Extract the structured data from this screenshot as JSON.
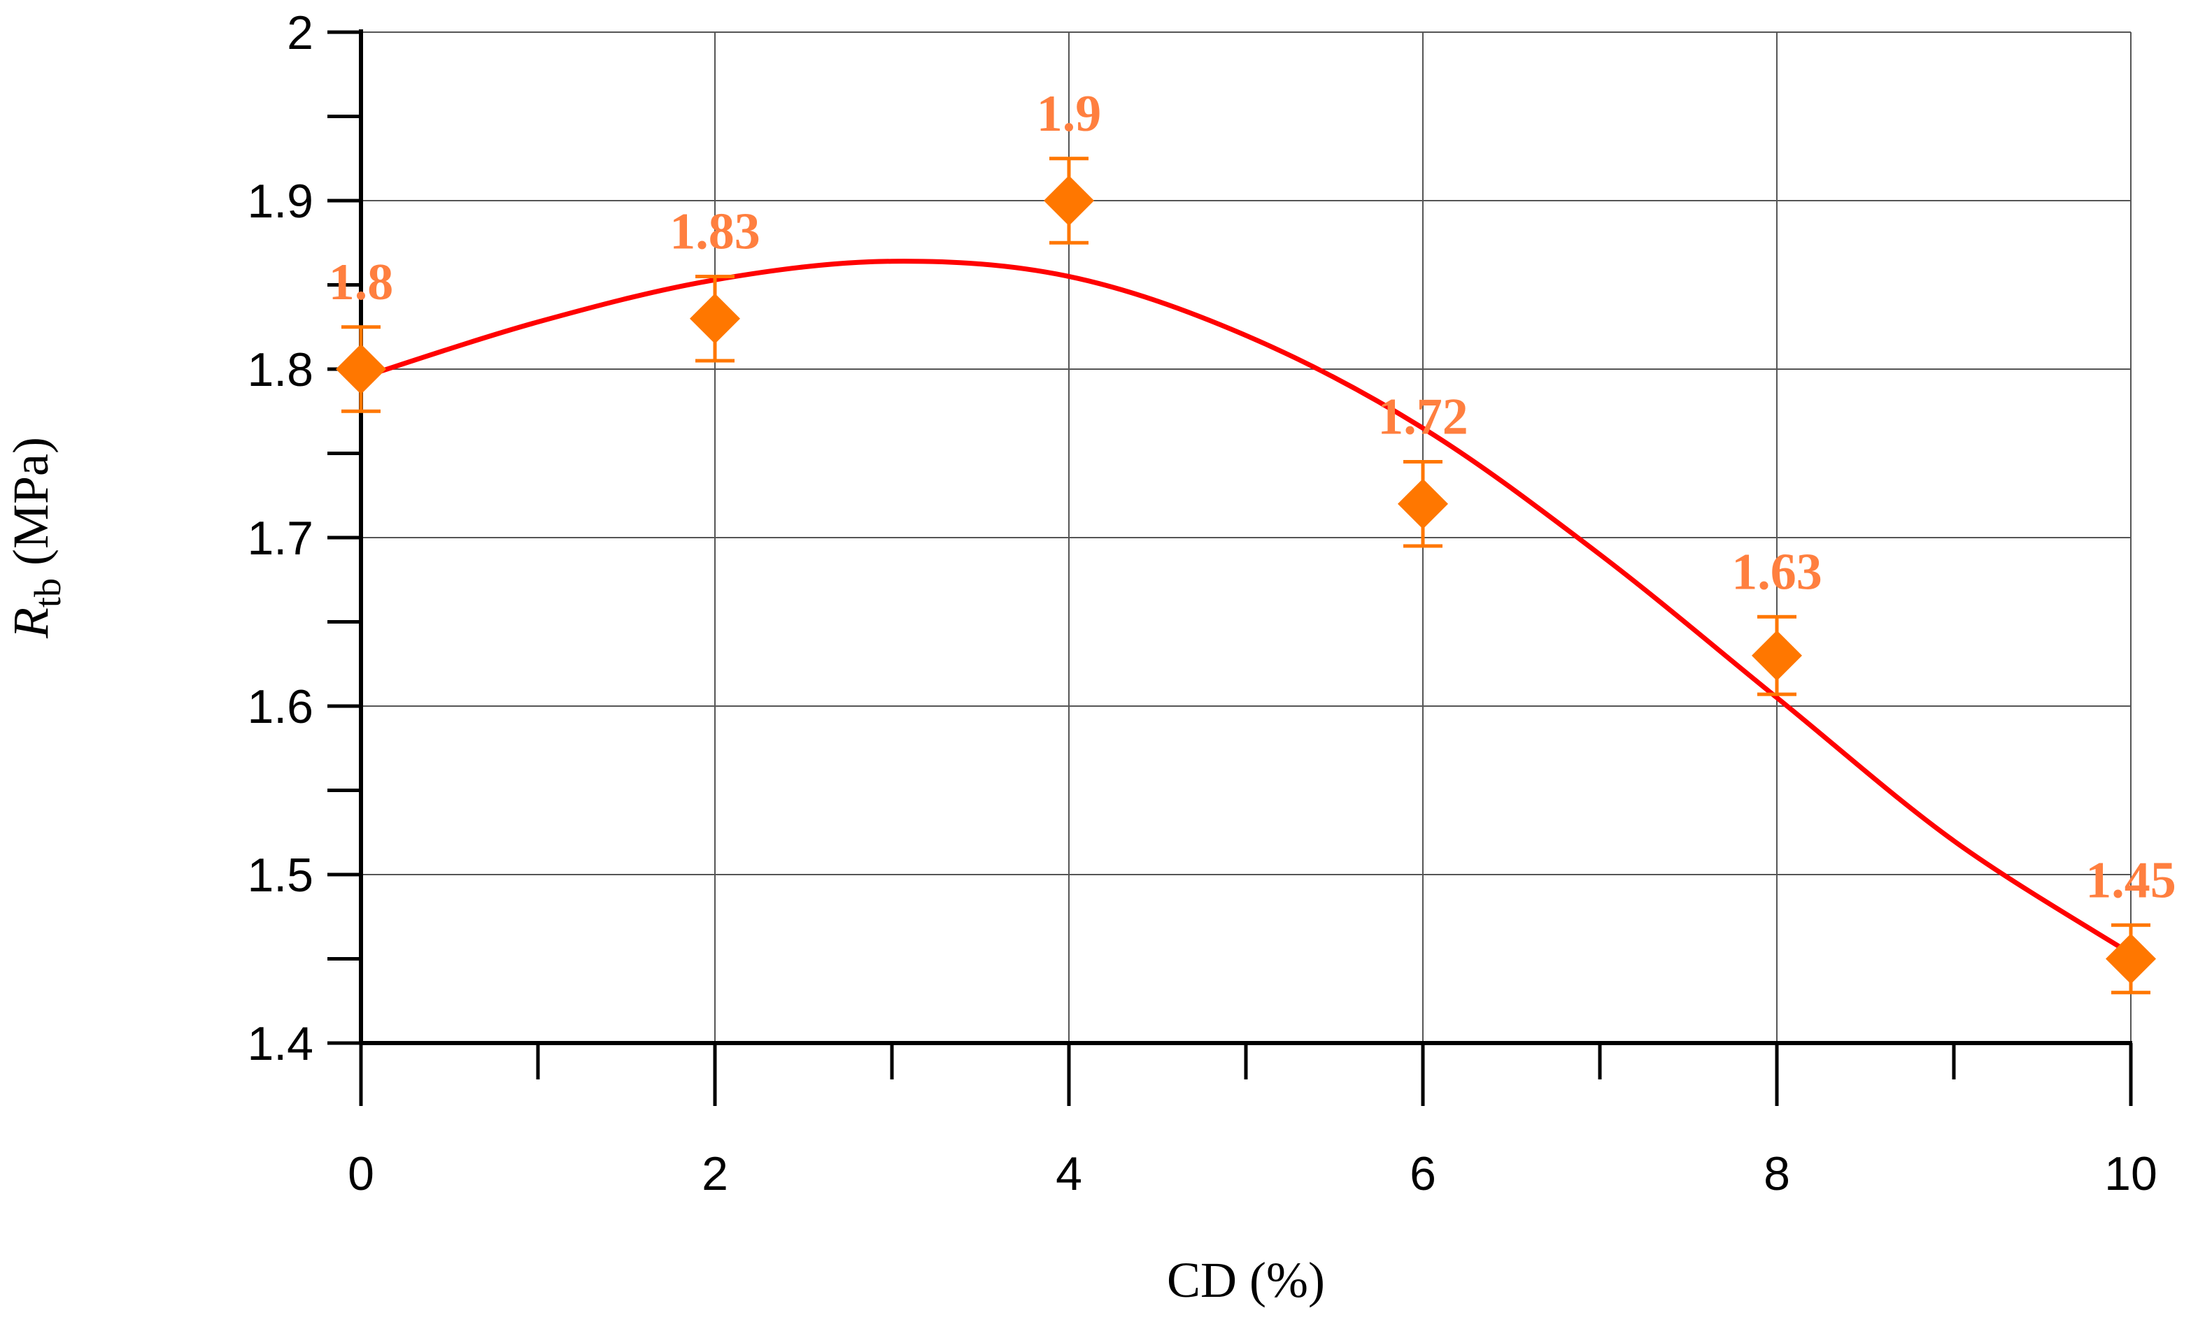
{
  "chart_data": {
    "type": "scatter",
    "title": "",
    "xlabel": "CD (%)",
    "ylabel": {
      "symbol": "R",
      "subscript": "tb",
      "unit": " (MPa)"
    },
    "xlim": [
      0,
      10
    ],
    "ylim": [
      1.4,
      2.0
    ],
    "x_ticks": [
      "0",
      "2",
      "4",
      "6",
      "8",
      "10"
    ],
    "y_ticks": [
      "1.4",
      "1.5",
      "1.6",
      "1.7",
      "1.8",
      "1.9",
      "2"
    ],
    "grid": true,
    "legend": "none",
    "series": [
      {
        "x": [
          0,
          2,
          4,
          6,
          8,
          10
        ],
        "values": [
          1.8,
          1.83,
          1.9,
          1.72,
          1.63,
          1.45
        ],
        "error": [
          0.025,
          0.025,
          0.025,
          0.025,
          0.023,
          0.02
        ],
        "labels": [
          "1.8",
          "1.83",
          "1.9",
          "1.72",
          "1.63",
          "1.45"
        ],
        "marker": "diamond",
        "color": "#ff7700"
      }
    ],
    "fit_curve": {
      "color": "#ff0000",
      "x": [
        0,
        1,
        2,
        3,
        4,
        5,
        6,
        7,
        8,
        9,
        10
      ],
      "y": [
        1.795,
        1.828,
        1.853,
        1.864,
        1.855,
        1.82,
        1.765,
        1.69,
        1.605,
        1.52,
        1.453
      ]
    },
    "label_color": "#ff7f3f"
  }
}
